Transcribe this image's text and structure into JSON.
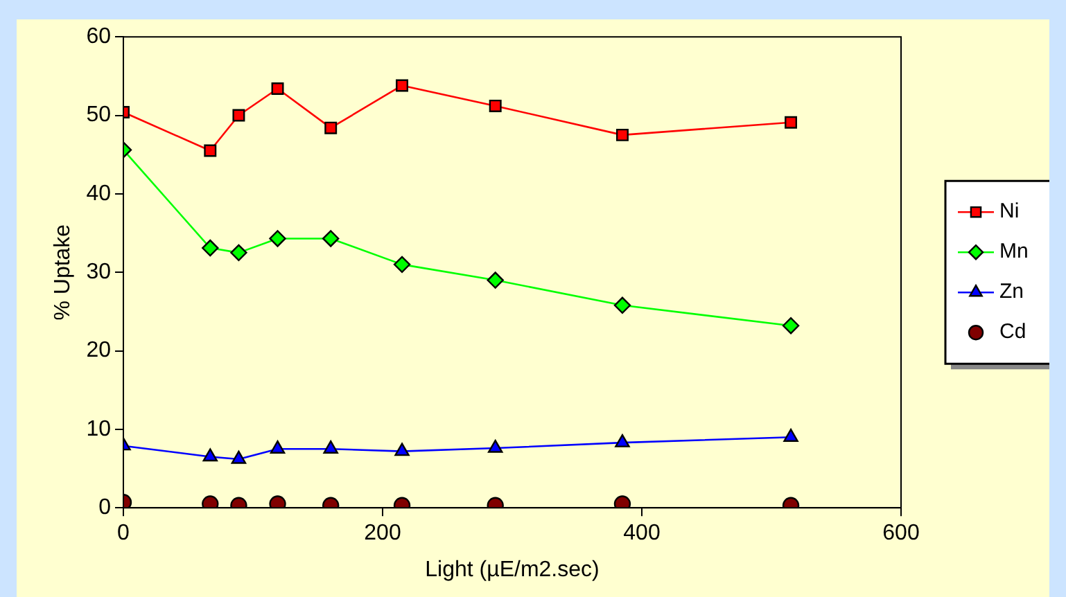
{
  "chart_data": {
    "type": "line",
    "xlabel": "Light (µE/m2.sec)",
    "ylabel": "% Uptake",
    "x": [
      0,
      67,
      89,
      119,
      160,
      215,
      287,
      385,
      515
    ],
    "xlim": [
      0,
      600
    ],
    "xticks": [
      0,
      200,
      400,
      600
    ],
    "ylim": [
      0,
      60
    ],
    "yticks": [
      0,
      10,
      20,
      30,
      40,
      50,
      60
    ],
    "grid": false,
    "legend": "right",
    "series": [
      {
        "name": "Ni",
        "color": "#ff0000",
        "marker": "square",
        "values": [
          50.4,
          45.5,
          50,
          53.4,
          48.4,
          53.8,
          51.2,
          47.5,
          49.1
        ]
      },
      {
        "name": "Mn",
        "color": "#00ff00",
        "marker": "diamond",
        "values": [
          45.6,
          33.1,
          32.5,
          34.3,
          34.3,
          31,
          29,
          25.8,
          23.2
        ]
      },
      {
        "name": "Zn",
        "color": "#0000ff",
        "marker": "triangle",
        "values": [
          7.9,
          6.5,
          6.2,
          7.5,
          7.5,
          7.2,
          7.6,
          8.3,
          9
        ]
      },
      {
        "name": "Cd",
        "color": "#800000",
        "marker": "circle",
        "type": "scatter",
        "values": [
          0.7,
          0.5,
          0.3,
          0.5,
          0.3,
          0.3,
          0.3,
          0.5,
          0.3
        ]
      }
    ]
  }
}
